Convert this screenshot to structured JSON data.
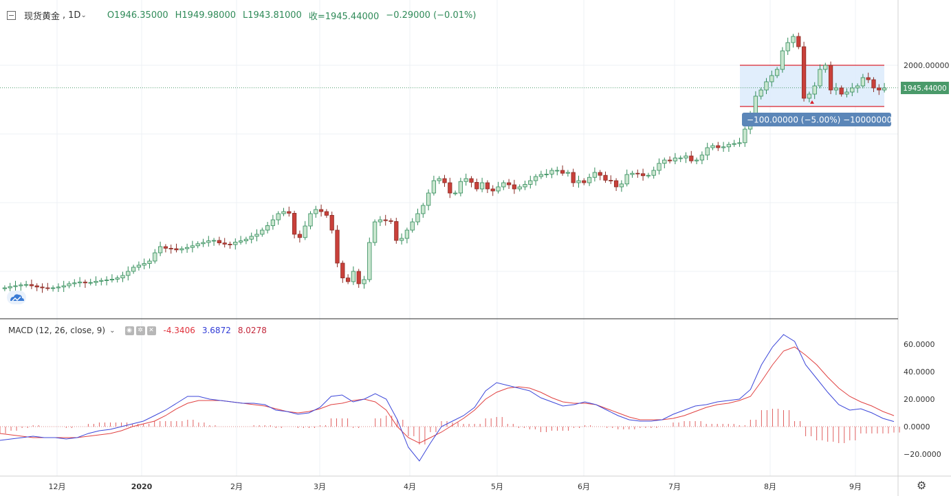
{
  "header": {
    "symbol": "现货黄金",
    "separator": ",",
    "interval": "1D",
    "open": "O1946.35000",
    "high": "H1949.98000",
    "low": "L1943.81000",
    "close": "收=1945.44000",
    "change": "−0.29000 (−0.01%)"
  },
  "indicator": {
    "label": "MACD (12, 26, close, 9)",
    "histogram_value": "-4.3406",
    "macd_value": "3.6872",
    "signal_value": "8.0278"
  },
  "price_label": "1945.44000",
  "measure_label": "−100.00000 (−5.00%) −10000000",
  "colors": {
    "up": "#2f8a58",
    "down": "#c0392b",
    "up_fill": "#c9e6cf",
    "down_fill": "#c9403a",
    "macd_line": "#3b46d9",
    "signal_line": "#e04040",
    "hist": "#e06060",
    "range_box": "#dcebfb",
    "range_line": "#d9232d",
    "measure_bg": "#5b86b8"
  },
  "chart_data": [
    {
      "type": "candlestick",
      "title": "现货黄金, 1D",
      "x_tick_labels": [
        "12月",
        "2020",
        "2月",
        "3月",
        "4月",
        "5月",
        "6月",
        "7月",
        "8月",
        "9月"
      ],
      "y_tick_labels": [
        "2000.00000"
      ],
      "last_price": 1945.44,
      "range_box": {
        "top": 2000.0,
        "bottom": 1900.0,
        "change": -100.0,
        "percent": -5.0
      },
      "close_series_approx": [
        1460,
        1463,
        1465,
        1467,
        1468,
        1465,
        1462,
        1460,
        1459,
        1460,
        1462,
        1465,
        1470,
        1472,
        1474,
        1472,
        1473,
        1476,
        1478,
        1479,
        1481,
        1484,
        1490,
        1500,
        1510,
        1515,
        1519,
        1525,
        1545,
        1560,
        1556,
        1555,
        1552,
        1555,
        1558,
        1562,
        1567,
        1570,
        1574,
        1575,
        1569,
        1566,
        1565,
        1571,
        1574,
        1578,
        1585,
        1590,
        1600,
        1611,
        1625,
        1640,
        1645,
        1641,
        1590,
        1582,
        1610,
        1640,
        1650,
        1645,
        1636,
        1600,
        1520,
        1484,
        1475,
        1500,
        1470,
        1480,
        1570,
        1620,
        1625,
        1623,
        1621,
        1575,
        1580,
        1600,
        1620,
        1640,
        1660,
        1690,
        1720,
        1725,
        1715,
        1690,
        1690,
        1718,
        1725,
        1716,
        1700,
        1715,
        1700,
        1695,
        1705,
        1715,
        1710,
        1700,
        1705,
        1711,
        1720,
        1730,
        1735,
        1736,
        1745,
        1745,
        1738,
        1740,
        1715,
        1720,
        1715,
        1728,
        1740,
        1733,
        1721,
        1720,
        1705,
        1712,
        1735,
        1738,
        1737,
        1732,
        1733,
        1745,
        1762,
        1770,
        1768,
        1775,
        1775,
        1780,
        1768,
        1770,
        1782,
        1800,
        1805,
        1800,
        1802,
        1808,
        1810,
        1812,
        1845,
        1880,
        1925,
        1940,
        1960,
        1975,
        1990,
        2035,
        2055,
        2070,
        2045,
        1920,
        1930,
        1950,
        1990,
        2000,
        1940,
        1945,
        1930,
        1935,
        1945,
        1950,
        1970,
        1965,
        1945,
        1940,
        1945
      ]
    },
    {
      "type": "line",
      "title": "MACD (12, 26, close, 9)",
      "y_tick_labels": [
        "60.0000",
        "40.0000",
        "20.0000",
        "0.0000",
        "−20.0000"
      ],
      "ylim": [
        -26,
        72
      ],
      "series": [
        {
          "name": "MACD",
          "values": [
            -10,
            -9,
            -8,
            -7,
            -8,
            -8,
            -9,
            -8,
            -5,
            -3,
            -2,
            0,
            2,
            4,
            8,
            12,
            17,
            22,
            22,
            20,
            19,
            18,
            17,
            17,
            16,
            12,
            11,
            9,
            10,
            14,
            22,
            23,
            18,
            20,
            24,
            20,
            5,
            -15,
            -25,
            -12,
            0,
            4,
            8,
            14,
            26,
            32,
            30,
            28,
            26,
            21,
            18,
            15,
            16,
            18,
            16,
            12,
            8,
            5,
            4,
            4,
            5,
            9,
            12,
            15,
            16,
            18,
            19,
            20,
            27,
            45,
            58,
            67,
            62,
            45,
            35,
            25,
            16,
            12,
            13,
            10,
            6,
            3.7
          ]
        },
        {
          "name": "Signal",
          "values": [
            -5,
            -6,
            -7,
            -8,
            -8,
            -8,
            -8,
            -8,
            -7,
            -6,
            -5,
            -3,
            0,
            2,
            4,
            8,
            13,
            17,
            19,
            19,
            19,
            18,
            17,
            16,
            15,
            13,
            11,
            10,
            11,
            13,
            16,
            17,
            19,
            20,
            18,
            12,
            0,
            -8,
            -12,
            -8,
            -4,
            1,
            6,
            12,
            20,
            25,
            28,
            29,
            28,
            25,
            21,
            18,
            17,
            17,
            16,
            13,
            10,
            7,
            5,
            5,
            5,
            6,
            8,
            11,
            14,
            16,
            17,
            19,
            22,
            33,
            45,
            55,
            58,
            52,
            45,
            36,
            28,
            22,
            18,
            15,
            11,
            8.0
          ]
        },
        {
          "name": "Histogram",
          "values": [
            -5,
            -3,
            -1,
            1,
            0,
            0,
            -1,
            0,
            2,
            3,
            3,
            3,
            2,
            2,
            4,
            4,
            4,
            5,
            3,
            1,
            0,
            0,
            0,
            1,
            1,
            -1,
            0,
            -1,
            -1,
            1,
            6,
            6,
            -1,
            0,
            6,
            8,
            5,
            -7,
            -13,
            -4,
            4,
            3,
            2,
            2,
            6,
            7,
            2,
            -1,
            -2,
            -4,
            -3,
            -3,
            -1,
            1,
            0,
            -1,
            -2,
            -2,
            -1,
            -1,
            0,
            3,
            4,
            4,
            2,
            2,
            2,
            1,
            5,
            12,
            13,
            12,
            4,
            -7,
            -10,
            -11,
            -12,
            -10,
            -5,
            -5,
            -5,
            -4.3
          ]
        }
      ]
    }
  ]
}
